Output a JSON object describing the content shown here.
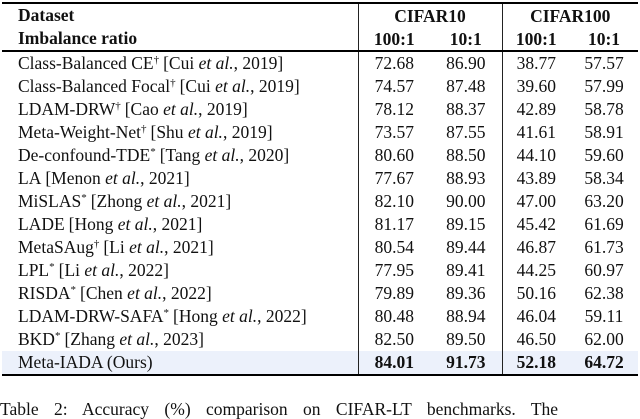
{
  "table": {
    "header": {
      "col1_line1": "Dataset",
      "col1_line2": "Imbalance ratio",
      "group1": "CIFAR10",
      "group2": "CIFAR100",
      "sub": [
        "100:1",
        "10:1",
        "100:1",
        "10:1"
      ]
    },
    "rows": [
      {
        "name": "Class-Balanced CE",
        "sup": "†",
        "cite_pre": "[Cui ",
        "cite_etal": "et al.",
        "cite_post": ", 2019]",
        "values": [
          "72.68",
          "86.90",
          "38.77",
          "57.57"
        ],
        "highlight": false
      },
      {
        "name": "Class-Balanced Focal",
        "sup": "†",
        "cite_pre": "[Cui ",
        "cite_etal": "et al.",
        "cite_post": ", 2019]",
        "values": [
          "74.57",
          "87.48",
          "39.60",
          "57.99"
        ],
        "highlight": false
      },
      {
        "name": "LDAM-DRW",
        "sup": "†",
        "cite_pre": "[Cao ",
        "cite_etal": "et al.",
        "cite_post": ", 2019]",
        "values": [
          "78.12",
          "88.37",
          "42.89",
          "58.78"
        ],
        "highlight": false
      },
      {
        "name": "Meta-Weight-Net",
        "sup": "†",
        "cite_pre": "[Shu ",
        "cite_etal": "et al.",
        "cite_post": ", 2019]",
        "values": [
          "73.57",
          "87.55",
          "41.61",
          "58.91"
        ],
        "highlight": false
      },
      {
        "name": "De-confound-TDE",
        "sup": "*",
        "cite_pre": "[Tang ",
        "cite_etal": "et al.",
        "cite_post": ", 2020]",
        "values": [
          "80.60",
          "88.50",
          "44.10",
          "59.60"
        ],
        "highlight": false
      },
      {
        "name": "LA",
        "sup": "",
        "cite_pre": "[Menon ",
        "cite_etal": "et al.",
        "cite_post": ", 2021]",
        "values": [
          "77.67",
          "88.93",
          "43.89",
          "58.34"
        ],
        "highlight": false
      },
      {
        "name": "MiSLAS",
        "sup": "*",
        "cite_pre": "[Zhong ",
        "cite_etal": "et al.",
        "cite_post": ", 2021]",
        "values": [
          "82.10",
          "90.00",
          "47.00",
          "63.20"
        ],
        "highlight": false
      },
      {
        "name": "LADE",
        "sup": "",
        "cite_pre": "[Hong ",
        "cite_etal": "et al.",
        "cite_post": ", 2021]",
        "values": [
          "81.17",
          "89.15",
          "45.42",
          "61.69"
        ],
        "highlight": false
      },
      {
        "name": "MetaSAug",
        "sup": "†",
        "cite_pre": "[Li ",
        "cite_etal": "et al.",
        "cite_post": ", 2021]",
        "values": [
          "80.54",
          "89.44",
          "46.87",
          "61.73"
        ],
        "highlight": false
      },
      {
        "name": "LPL",
        "sup": "*",
        "cite_pre": "[Li ",
        "cite_etal": "et al.",
        "cite_post": ", 2022]",
        "values": [
          "77.95",
          "89.41",
          "44.25",
          "60.97"
        ],
        "highlight": false
      },
      {
        "name": "RISDA",
        "sup": "*",
        "cite_pre": "[Chen ",
        "cite_etal": "et al.",
        "cite_post": ", 2022]",
        "values": [
          "79.89",
          "89.36",
          "50.16",
          "62.38"
        ],
        "highlight": false
      },
      {
        "name": "LDAM-DRW-SAFA",
        "sup": "*",
        "cite_pre": "[Hong ",
        "cite_etal": "et al.",
        "cite_post": ", 2022]",
        "values": [
          "80.48",
          "88.94",
          "46.04",
          "59.11"
        ],
        "highlight": false
      },
      {
        "name": "BKD",
        "sup": "*",
        "cite_pre": "[Zhang ",
        "cite_etal": "et al.",
        "cite_post": ", 2023]",
        "values": [
          "82.50",
          "89.50",
          "46.50",
          "62.00"
        ],
        "highlight": false
      },
      {
        "name": "Meta-IADA (Ours)",
        "sup": "",
        "cite_pre": "",
        "cite_etal": "",
        "cite_post": "",
        "values": [
          "84.01",
          "91.73",
          "52.18",
          "64.72"
        ],
        "highlight": true
      }
    ]
  },
  "caption": {
    "text": "Table 2: Accuracy (%) comparison on CIFAR-LT benchmarks. The"
  },
  "colors": {
    "highlight_row": "#ecf1fb",
    "text": "#111111",
    "rule": "#000000"
  }
}
